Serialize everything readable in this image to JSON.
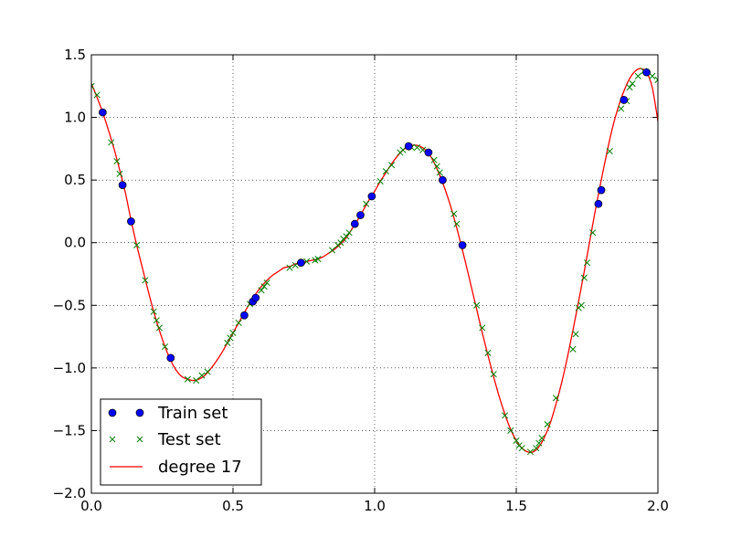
{
  "chart_data": {
    "type": "scatter",
    "title": "",
    "xlabel": "",
    "ylabel": "",
    "xlim": [
      0.0,
      2.0
    ],
    "ylim": [
      -2.0,
      1.5
    ],
    "xticks": [
      "0.0",
      "0.5",
      "1.0",
      "1.5",
      "2.0"
    ],
    "yticks": [
      "−2.0",
      "−1.5",
      "−1.0",
      "−0.5",
      "0.0",
      "0.5",
      "1.0",
      "1.5"
    ],
    "grid": true,
    "legend_position": "lower-left",
    "series": [
      {
        "name": "Train set",
        "kind": "points",
        "marker": "o",
        "color": "#0000ff",
        "edge": "#000000",
        "points": [
          [
            0.04,
            1.04
          ],
          [
            0.11,
            0.46
          ],
          [
            0.14,
            0.17
          ],
          [
            0.28,
            -0.92
          ],
          [
            0.54,
            -0.58
          ],
          [
            0.57,
            -0.47
          ],
          [
            0.58,
            -0.44
          ],
          [
            0.74,
            -0.16
          ],
          [
            0.93,
            0.15
          ],
          [
            0.95,
            0.22
          ],
          [
            0.99,
            0.37
          ],
          [
            1.12,
            0.77
          ],
          [
            1.19,
            0.72
          ],
          [
            1.24,
            0.5
          ],
          [
            1.31,
            -0.02
          ],
          [
            1.79,
            0.31
          ],
          [
            1.8,
            0.42
          ],
          [
            1.88,
            1.14
          ],
          [
            1.96,
            1.36
          ]
        ]
      },
      {
        "name": "Test set",
        "kind": "points",
        "marker": "x",
        "color": "#008000",
        "points": [
          [
            0.0,
            1.25
          ],
          [
            0.02,
            1.18
          ],
          [
            0.07,
            0.8
          ],
          [
            0.09,
            0.65
          ],
          [
            0.1,
            0.55
          ],
          [
            0.16,
            -0.02
          ],
          [
            0.19,
            -0.3
          ],
          [
            0.22,
            -0.55
          ],
          [
            0.23,
            -0.62
          ],
          [
            0.24,
            -0.68
          ],
          [
            0.26,
            -0.83
          ],
          [
            0.34,
            -1.09
          ],
          [
            0.37,
            -1.1
          ],
          [
            0.39,
            -1.06
          ],
          [
            0.41,
            -1.03
          ],
          [
            0.48,
            -0.8
          ],
          [
            0.49,
            -0.76
          ],
          [
            0.5,
            -0.72
          ],
          [
            0.52,
            -0.64
          ],
          [
            0.56,
            -0.49
          ],
          [
            0.6,
            -0.38
          ],
          [
            0.61,
            -0.35
          ],
          [
            0.62,
            -0.32
          ],
          [
            0.7,
            -0.2
          ],
          [
            0.72,
            -0.18
          ],
          [
            0.76,
            -0.15
          ],
          [
            0.79,
            -0.14
          ],
          [
            0.8,
            -0.13
          ],
          [
            0.85,
            -0.06
          ],
          [
            0.87,
            -0.02
          ],
          [
            0.88,
            0.0
          ],
          [
            0.89,
            0.03
          ],
          [
            0.9,
            0.05
          ],
          [
            0.91,
            0.08
          ],
          [
            0.97,
            0.31
          ],
          [
            1.02,
            0.49
          ],
          [
            1.04,
            0.57
          ],
          [
            1.06,
            0.62
          ],
          [
            1.09,
            0.72
          ],
          [
            1.1,
            0.74
          ],
          [
            1.13,
            0.76
          ],
          [
            1.15,
            0.76
          ],
          [
            1.17,
            0.74
          ],
          [
            1.21,
            0.66
          ],
          [
            1.22,
            0.61
          ],
          [
            1.23,
            0.56
          ],
          [
            1.28,
            0.23
          ],
          [
            1.29,
            0.15
          ],
          [
            1.36,
            -0.5
          ],
          [
            1.38,
            -0.68
          ],
          [
            1.4,
            -0.88
          ],
          [
            1.42,
            -1.05
          ],
          [
            1.46,
            -1.38
          ],
          [
            1.48,
            -1.5
          ],
          [
            1.5,
            -1.58
          ],
          [
            1.51,
            -1.62
          ],
          [
            1.52,
            -1.64
          ],
          [
            1.55,
            -1.67
          ],
          [
            1.57,
            -1.64
          ],
          [
            1.58,
            -1.6
          ],
          [
            1.59,
            -1.56
          ],
          [
            1.61,
            -1.45
          ],
          [
            1.64,
            -1.24
          ],
          [
            1.7,
            -0.85
          ],
          [
            1.71,
            -0.73
          ],
          [
            1.72,
            -0.52
          ],
          [
            1.73,
            -0.5
          ],
          [
            1.74,
            -0.28
          ],
          [
            1.75,
            -0.16
          ],
          [
            1.77,
            0.08
          ],
          [
            1.83,
            0.73
          ],
          [
            1.87,
            1.07
          ],
          [
            1.89,
            1.13
          ],
          [
            1.9,
            1.24
          ],
          [
            1.91,
            1.27
          ],
          [
            1.93,
            1.33
          ],
          [
            1.95,
            1.37
          ],
          [
            1.98,
            1.33
          ],
          [
            2.0,
            1.3
          ]
        ]
      },
      {
        "name": "degree 17",
        "kind": "line",
        "color": "#ff0000",
        "points": [
          [
            0.0,
            1.27
          ],
          [
            0.02,
            1.16
          ],
          [
            0.04,
            1.04
          ],
          [
            0.06,
            0.9
          ],
          [
            0.08,
            0.75
          ],
          [
            0.1,
            0.58
          ],
          [
            0.12,
            0.4
          ],
          [
            0.14,
            0.18
          ],
          [
            0.16,
            -0.02
          ],
          [
            0.18,
            -0.2
          ],
          [
            0.2,
            -0.38
          ],
          [
            0.22,
            -0.55
          ],
          [
            0.24,
            -0.7
          ],
          [
            0.26,
            -0.83
          ],
          [
            0.28,
            -0.94
          ],
          [
            0.3,
            -1.02
          ],
          [
            0.32,
            -1.07
          ],
          [
            0.34,
            -1.09
          ],
          [
            0.36,
            -1.1
          ],
          [
            0.38,
            -1.09
          ],
          [
            0.4,
            -1.06
          ],
          [
            0.42,
            -1.01
          ],
          [
            0.44,
            -0.95
          ],
          [
            0.46,
            -0.88
          ],
          [
            0.48,
            -0.8
          ],
          [
            0.5,
            -0.72
          ],
          [
            0.52,
            -0.64
          ],
          [
            0.54,
            -0.56
          ],
          [
            0.56,
            -0.48
          ],
          [
            0.58,
            -0.41
          ],
          [
            0.6,
            -0.35
          ],
          [
            0.62,
            -0.3
          ],
          [
            0.64,
            -0.26
          ],
          [
            0.66,
            -0.23
          ],
          [
            0.68,
            -0.2
          ],
          [
            0.7,
            -0.19
          ],
          [
            0.72,
            -0.17
          ],
          [
            0.74,
            -0.16
          ],
          [
            0.76,
            -0.15
          ],
          [
            0.78,
            -0.14
          ],
          [
            0.8,
            -0.13
          ],
          [
            0.82,
            -0.11
          ],
          [
            0.84,
            -0.08
          ],
          [
            0.86,
            -0.05
          ],
          [
            0.88,
            -0.01
          ],
          [
            0.9,
            0.04
          ],
          [
            0.92,
            0.11
          ],
          [
            0.94,
            0.18
          ],
          [
            0.96,
            0.26
          ],
          [
            0.98,
            0.34
          ],
          [
            1.0,
            0.41
          ],
          [
            1.02,
            0.49
          ],
          [
            1.04,
            0.56
          ],
          [
            1.06,
            0.63
          ],
          [
            1.08,
            0.69
          ],
          [
            1.1,
            0.74
          ],
          [
            1.12,
            0.77
          ],
          [
            1.14,
            0.78
          ],
          [
            1.16,
            0.77
          ],
          [
            1.18,
            0.74
          ],
          [
            1.2,
            0.68
          ],
          [
            1.22,
            0.59
          ],
          [
            1.24,
            0.48
          ],
          [
            1.26,
            0.35
          ],
          [
            1.28,
            0.2
          ],
          [
            1.3,
            0.03
          ],
          [
            1.32,
            -0.15
          ],
          [
            1.34,
            -0.34
          ],
          [
            1.36,
            -0.53
          ],
          [
            1.38,
            -0.72
          ],
          [
            1.4,
            -0.9
          ],
          [
            1.42,
            -1.07
          ],
          [
            1.44,
            -1.23
          ],
          [
            1.46,
            -1.37
          ],
          [
            1.48,
            -1.49
          ],
          [
            1.5,
            -1.58
          ],
          [
            1.52,
            -1.64
          ],
          [
            1.54,
            -1.67
          ],
          [
            1.56,
            -1.67
          ],
          [
            1.58,
            -1.63
          ],
          [
            1.6,
            -1.55
          ],
          [
            1.62,
            -1.44
          ],
          [
            1.64,
            -1.29
          ],
          [
            1.66,
            -1.12
          ],
          [
            1.68,
            -0.92
          ],
          [
            1.7,
            -0.7
          ],
          [
            1.72,
            -0.47
          ],
          [
            1.74,
            -0.23
          ],
          [
            1.76,
            0.02
          ],
          [
            1.78,
            0.27
          ],
          [
            1.8,
            0.5
          ],
          [
            1.82,
            0.72
          ],
          [
            1.84,
            0.92
          ],
          [
            1.86,
            1.08
          ],
          [
            1.88,
            1.21
          ],
          [
            1.9,
            1.31
          ],
          [
            1.92,
            1.37
          ],
          [
            1.94,
            1.39
          ],
          [
            1.96,
            1.36
          ],
          [
            1.98,
            1.24
          ],
          [
            2.0,
            0.97
          ]
        ]
      }
    ]
  }
}
